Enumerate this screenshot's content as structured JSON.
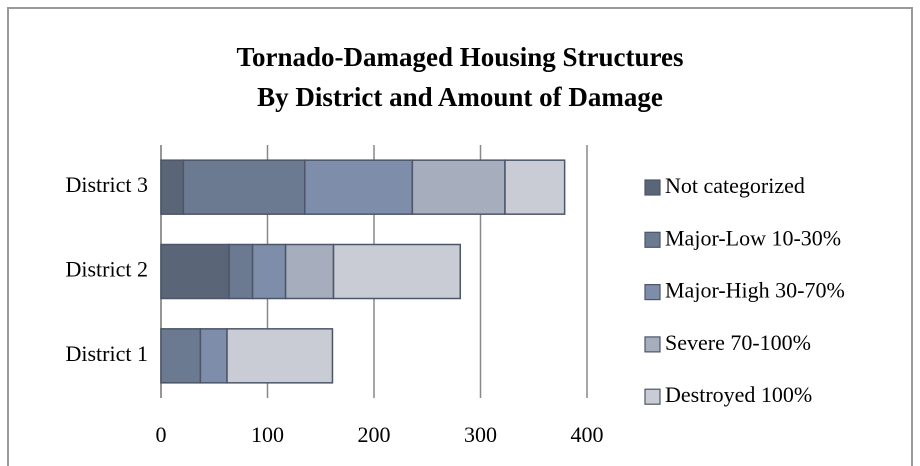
{
  "chart_data": {
    "type": "stacked_bar_horizontal",
    "title": [
      "Tornado-Damaged Housing Structures",
      "By District and Amount of Damage"
    ],
    "categories": [
      "District 1",
      "District 2",
      "District 3"
    ],
    "series": [
      {
        "name": "Not categorized",
        "color": "#5a6577",
        "values": [
          0,
          64,
          21
        ]
      },
      {
        "name": "Major-Low 10-30%",
        "color": "#6b7a90",
        "values": [
          37,
          22,
          114
        ]
      },
      {
        "name": "Major-High 30-70%",
        "color": "#7d8daa",
        "values": [
          25,
          31,
          101
        ]
      },
      {
        "name": "Severe 70-100%",
        "color": "#a6adbd",
        "values": [
          0,
          45,
          87
        ]
      },
      {
        "name": "Destroyed 100%",
        "color": "#c9ccd4",
        "values": [
          99,
          119,
          56
        ]
      }
    ],
    "xlim": [
      0,
      400
    ],
    "xticks": [
      0,
      100,
      200,
      300,
      400
    ],
    "grid": true,
    "legend": "right"
  }
}
